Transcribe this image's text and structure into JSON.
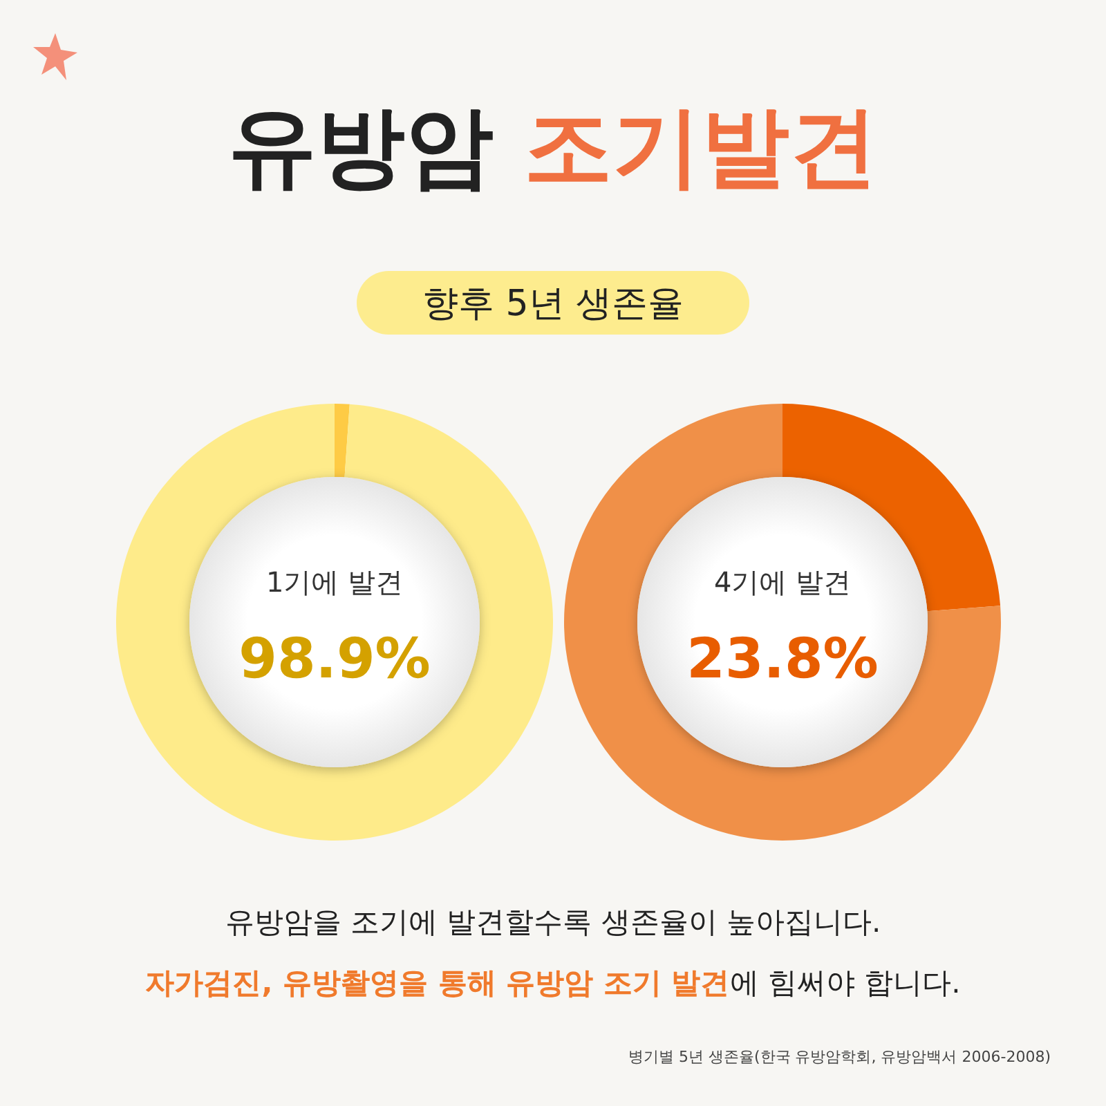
{
  "chart_data": [
    {
      "type": "donut",
      "title": "유방암 조기발견",
      "subtitle": "향후 5년 생존율",
      "categories": [
        null,
        "1기에 발견"
      ],
      "values": [
        1.1,
        98.9
      ],
      "colors": [
        "#fecb45",
        "#feeb8a"
      ],
      "value_labels": [
        null,
        "98.9%"
      ]
    },
    {
      "type": "donut",
      "categories": [
        "4기에 발견",
        null
      ],
      "values": [
        23.8,
        76.2
      ],
      "colors": [
        "#ec6200",
        "#f09048"
      ],
      "value_labels": [
        "23.8%",
        null
      ],
      "annotations": [
        "유방암을 조기에 발견할수록 생존율이 높아집니다.",
        "자가검진, 유방촬영을 통해 유방암 조기 발견",
        "에 힘써야 합니다.",
        "병기별 5년 생존율(한국 유방암학회, 유방암백서 2006-2008)"
      ]
    }
  ]
}
